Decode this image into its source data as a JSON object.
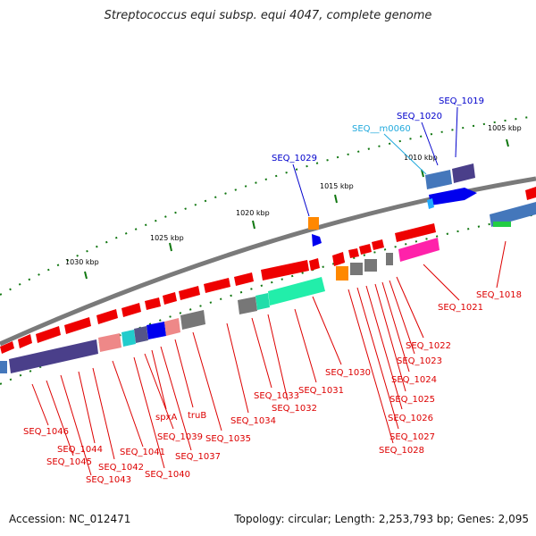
{
  "title": "Streptococcus equi subsp. equi 4047, complete genome",
  "footer": {
    "accession": "Accession: NC_012471",
    "topology": "Topology: circular; Length: 2,253,793 bp; Genes: 2,095"
  },
  "scale_ticks": [
    "1005 kbp",
    "1010 kbp",
    "1015 kbp",
    "1020 kbp",
    "1025 kbp",
    "1030 kbp"
  ],
  "feature_labels": {
    "blue": [
      "SEQ_1019",
      "SEQ_1020",
      "SEQ_1029"
    ],
    "cyan": [
      "SEQ__m0060"
    ],
    "red": [
      "SEQ_1018",
      "SEQ_1021",
      "SEQ_1022",
      "SEQ_1023",
      "SEQ_1024",
      "SEQ_1025",
      "SEQ_1026",
      "SEQ_1027",
      "SEQ_1028",
      "SEQ_1030",
      "SEQ_1031",
      "SEQ_1032",
      "SEQ_1033",
      "SEQ_1034",
      "SEQ_1035",
      "SEQ_1037",
      "SEQ_1039",
      "SEQ_1040",
      "SEQ_1041",
      "SEQ_1042",
      "SEQ_1043",
      "SEQ_1044",
      "SEQ_1045",
      "SEQ_1046",
      "spxA",
      "truB"
    ]
  },
  "colors": {
    "backbone": "#7a7a7a",
    "cds": "#ee0000",
    "label_red": "#dd0000",
    "label_blue": "#0000cc",
    "label_cyan": "#22aadd",
    "tick_green": "#117711"
  }
}
